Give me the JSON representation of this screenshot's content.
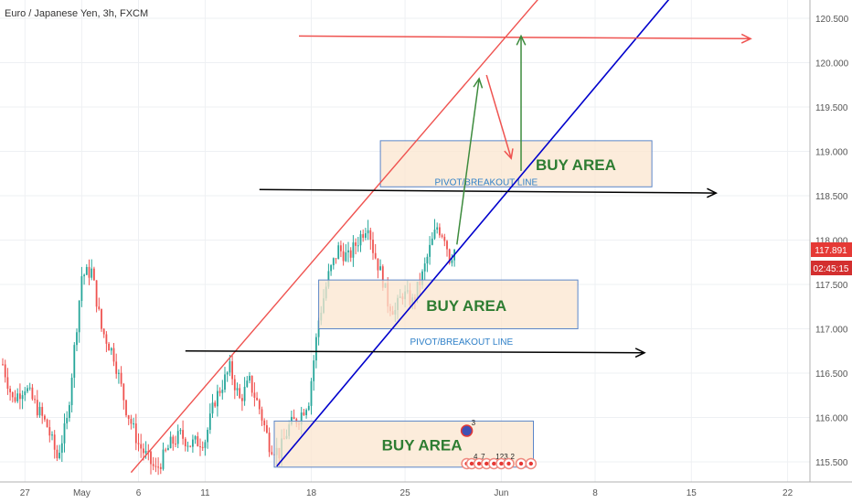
{
  "header": {
    "symbol_title": "Euro / Japanese Yen, 3h, FXCM"
  },
  "price_tag": {
    "value": "117.891",
    "countdown": "02:45:15"
  },
  "colors": {
    "up": "#26a69a",
    "down": "#ef5350",
    "channel_upper": "#ef5350",
    "channel_lower": "#0000cc",
    "target_line": "#ef5350",
    "horizontal_line": "#000000",
    "zone_fill": "#fbe5cf",
    "zone_border": "#5b86c8",
    "path_up": "#3d8b3d",
    "path_down": "#ef5350",
    "tag_bg": "#e53935",
    "tag_bg_dark": "#d32f2f"
  },
  "chart_data": {
    "type": "candlestick",
    "title": "Euro / Japanese Yen, 3h, FXCM",
    "xlabel": "",
    "ylabel": "",
    "ylim": [
      115.38,
      120.75
    ],
    "y_ticks": [
      "115.500",
      "116.000",
      "116.500",
      "117.000",
      "117.500",
      "118.000",
      "118.500",
      "119.000",
      "119.500",
      "120.000",
      "120.500"
    ],
    "x_ticks": [
      {
        "label": "27",
        "bar": 9
      },
      {
        "label": "May",
        "bar": 32
      },
      {
        "label": "6",
        "bar": 55
      },
      {
        "label": "11",
        "bar": 82
      },
      {
        "label": "18",
        "bar": 125
      },
      {
        "label": "25",
        "bar": 163
      },
      {
        "label": "Jun",
        "bar": 202
      },
      {
        "label": "8",
        "bar": 240
      },
      {
        "label": "15",
        "bar": 279
      },
      {
        "label": "22",
        "bar": 318
      }
    ],
    "grid": true,
    "last_bar": 183,
    "anchors": [
      [
        0,
        116.6
      ],
      [
        4,
        116.2
      ],
      [
        9,
        116.35
      ],
      [
        13,
        116.15
      ],
      [
        18,
        115.9
      ],
      [
        22,
        115.55
      ],
      [
        26,
        115.95
      ],
      [
        32,
        117.6
      ],
      [
        36,
        117.65
      ],
      [
        40,
        117.0
      ],
      [
        45,
        116.7
      ],
      [
        50,
        116.1
      ],
      [
        55,
        115.7
      ],
      [
        62,
        115.4
      ],
      [
        68,
        115.7
      ],
      [
        72,
        115.8
      ],
      [
        76,
        115.7
      ],
      [
        82,
        115.75
      ],
      [
        86,
        116.2
      ],
      [
        92,
        116.55
      ],
      [
        96,
        116.2
      ],
      [
        100,
        116.4
      ],
      [
        104,
        116.1
      ],
      [
        108,
        115.7
      ],
      [
        112,
        115.6
      ],
      [
        116,
        115.9
      ],
      [
        120,
        116.0
      ],
      [
        124,
        116.2
      ],
      [
        128,
        117.1
      ],
      [
        132,
        117.6
      ],
      [
        136,
        117.9
      ],
      [
        140,
        117.8
      ],
      [
        144,
        118.0
      ],
      [
        148,
        118.2
      ],
      [
        150,
        117.9
      ],
      [
        154,
        117.55
      ],
      [
        156,
        117.3
      ],
      [
        159,
        117.2
      ],
      [
        162,
        117.4
      ],
      [
        166,
        117.3
      ],
      [
        170,
        117.6
      ],
      [
        173,
        117.9
      ],
      [
        176,
        118.15
      ],
      [
        179,
        118.05
      ],
      [
        181,
        117.8
      ],
      [
        183,
        117.89
      ]
    ],
    "buy_areas": [
      {
        "label": "BUY AREA",
        "from_bar": 153,
        "to_bar": 263,
        "low": 118.6,
        "high": 119.12
      },
      {
        "label": "BUY AREA",
        "from_bar": 128,
        "to_bar": 233,
        "low": 117.0,
        "high": 117.55
      },
      {
        "label": "BUY AREA",
        "from_bar": 110,
        "to_bar": 215,
        "low": 115.44,
        "high": 115.96
      }
    ],
    "pivot_lines": [
      {
        "label": "PIVOT/BREAKOUT LINE",
        "x_bar": 175,
        "price": 118.66
      },
      {
        "label": "PIVOT/BREAKOUT LINE",
        "x_bar": 165,
        "price": 116.86
      }
    ],
    "horizontal_arrows": [
      {
        "from_bar": 104,
        "price_start": 118.57,
        "to_bar": 289,
        "price_end": 118.53
      },
      {
        "from_bar": 74,
        "price_start": 116.75,
        "to_bar": 260,
        "price_end": 116.73
      }
    ],
    "target_arrow": {
      "from_bar": 120,
      "price_start": 120.3,
      "to_bar": 303,
      "price_end": 120.27
    },
    "channel_upper": [
      [
        52,
        115.38
      ],
      [
        218,
        120.75
      ]
    ],
    "channel_lower": [
      [
        111,
        115.45
      ],
      [
        271,
        120.75
      ]
    ],
    "projection_path": [
      {
        "bar": 184,
        "price": 117.95
      },
      {
        "bar": 193,
        "price": 119.82
      },
      {
        "bar": 196,
        "price": 119.86
      },
      {
        "bar": 206,
        "price": 118.92
      },
      {
        "bar": 210,
        "price": 118.78
      },
      {
        "bar": 210,
        "price": 120.3
      }
    ],
    "event_markers": {
      "top": {
        "label": "3",
        "bar": 188,
        "price": 115.85
      },
      "bottom": [
        {
          "label": "",
          "bar": 188,
          "price": 115.48
        },
        {
          "label": "4",
          "bar": 190,
          "price": 115.48
        },
        {
          "label": "7",
          "bar": 193,
          "price": 115.48
        },
        {
          "label": "",
          "bar": 196,
          "price": 115.48
        },
        {
          "label": "123",
          "bar": 199,
          "price": 115.48
        },
        {
          "label": "",
          "bar": 202,
          "price": 115.48
        },
        {
          "label": "2",
          "bar": 205,
          "price": 115.48
        },
        {
          "label": "",
          "bar": 210,
          "price": 115.48
        },
        {
          "label": "",
          "bar": 214,
          "price": 115.48
        }
      ]
    }
  }
}
